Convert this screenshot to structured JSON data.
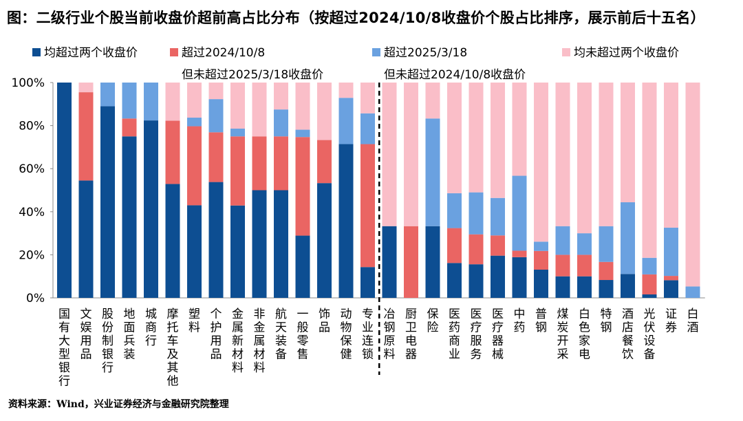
{
  "title": "图：二级行业个股当前收盘价超前高占比分布（按超过2024/10/8收盘价个股占比排序，展示前后十五名）",
  "source": "资料来源：Wind，兴业证券经济与金融研究院整理",
  "legend": [
    {
      "label": "均超过两个收盘价",
      "sub": "",
      "color": "#0d4e92"
    },
    {
      "label": "超过2024/10/8",
      "sub": "但未超过2025/3/18收盘价",
      "color": "#ea6563"
    },
    {
      "label": "超过2025/3/18",
      "sub": "但未超过2024/10/8收盘价",
      "color": "#6aa1e0"
    },
    {
      "label": "均未超过两个收盘价",
      "sub": "",
      "color": "#fabec8"
    }
  ],
  "chart_data": {
    "type": "bar",
    "stacked": true,
    "title": "二级行业个股当前收盘价超前高占比分布",
    "xlabel": "",
    "ylabel": "",
    "ylim": [
      0,
      100
    ],
    "yticks": [
      "0%",
      "20%",
      "40%",
      "60%",
      "80%",
      "100%"
    ],
    "grid": false,
    "legend_position": "top",
    "divider_after_index": 14,
    "categories": [
      "国有大型银行",
      "文娱用品",
      "股份制银行",
      "地面兵装",
      "城商行",
      "摩托车及其他",
      "塑料",
      "个护用品",
      "金属新材料",
      "非金属材料",
      "航天装备",
      "一般零售",
      "饰品",
      "动物保健",
      "专业连锁",
      "冶钢原料",
      "厨卫电器",
      "保险",
      "医药商业",
      "医疗服务",
      "医疗器械",
      "中药",
      "普钢",
      "煤炭开采",
      "白色家电",
      "特钢",
      "酒店餐饮",
      "光伏设备",
      "证券",
      "白酒"
    ],
    "series": [
      {
        "name": "均超过两个收盘价",
        "color": "#0d4e92",
        "values": [
          100,
          54.5,
          89,
          75,
          82.4,
          52.9,
          43,
          53.8,
          42.9,
          50,
          50,
          28.9,
          53.3,
          71.4,
          14.3,
          33.3,
          0,
          33.3,
          16.2,
          15.6,
          19.6,
          18.9,
          13.1,
          10,
          10,
          8.3,
          11.1,
          1.6,
          8.2,
          0
        ]
      },
      {
        "name": "超过2024/10/8但未超过2025/3/18收盘价",
        "color": "#ea6563",
        "values": [
          0,
          41,
          0,
          8.3,
          0,
          29.4,
          36.7,
          23.1,
          32.1,
          25,
          25,
          45.8,
          20,
          0,
          57.1,
          0,
          33.3,
          0,
          16.2,
          13.9,
          9.4,
          3,
          8.7,
          10,
          10,
          8.4,
          0,
          9.3,
          2,
          0
        ]
      },
      {
        "name": "超过2025/3/18但未超过2024/10/8收盘价",
        "color": "#6aa1e0",
        "values": [
          0,
          0,
          11,
          16.7,
          17.6,
          0,
          4,
          15.4,
          3.6,
          0,
          12.5,
          3.4,
          0,
          21.5,
          14.3,
          0,
          0,
          50,
          16.2,
          19.5,
          17.4,
          34.8,
          4.3,
          13.3,
          10,
          16.6,
          33.3,
          7.7,
          22.4,
          5.3
        ]
      },
      {
        "name": "均未超过两个收盘价",
        "color": "#fabec8",
        "values": [
          0,
          4.5,
          0,
          0,
          0,
          17.7,
          16.3,
          7.7,
          21.4,
          25,
          12.5,
          21.9,
          26.7,
          7.1,
          14.3,
          66.7,
          66.7,
          16.7,
          51.4,
          51,
          53.6,
          43.3,
          73.9,
          66.7,
          70,
          66.7,
          55.6,
          81.4,
          67.4,
          94.7
        ]
      }
    ]
  }
}
